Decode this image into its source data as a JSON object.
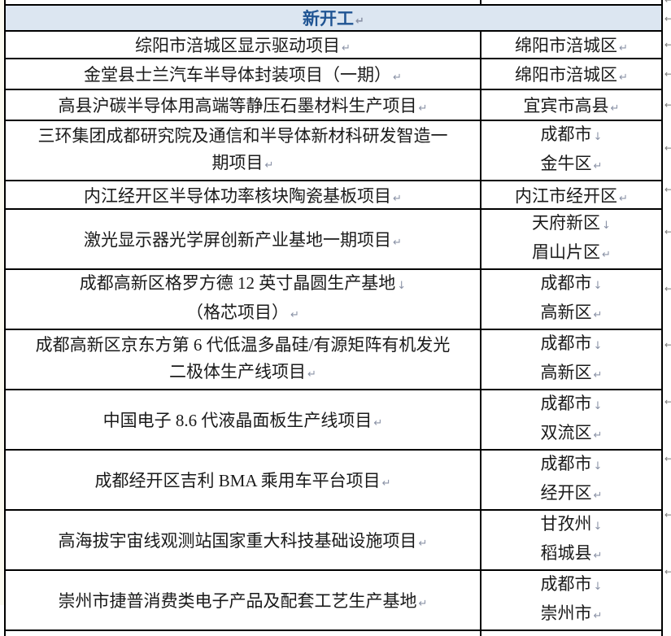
{
  "header": {
    "label": "新开工"
  },
  "marks": {
    "line_break": "↓",
    "cell_end": "↵",
    "row_end": "←"
  },
  "colors": {
    "header_bg": "#dce6f1",
    "header_text": "#1f5493",
    "border": "#000000",
    "body_text": "#1a1a1a",
    "mark_color": "#8a92a6"
  },
  "table": {
    "rows": [
      {
        "project_lines": [
          {
            "text": "综阳市涪城区显示驱动项目",
            "mark": "end"
          }
        ],
        "location_lines": [
          {
            "text": "绵阳市涪城区",
            "mark": "end"
          }
        ]
      },
      {
        "project_lines": [
          {
            "text": "金堂县士兰汽车半导体封装项目（一期）",
            "mark": "end"
          }
        ],
        "location_lines": [
          {
            "text": "绵阳市涪城区",
            "mark": "end"
          }
        ]
      },
      {
        "project_lines": [
          {
            "text": "高县沪碳半导体用高端等静压石墨材料生产项目",
            "mark": "end"
          }
        ],
        "location_lines": [
          {
            "text": "宜宾市高县",
            "mark": "end"
          }
        ]
      },
      {
        "project_lines": [
          {
            "text": "三环集团成都研究院及通信和半导体新材科研发智造一",
            "mark": "none"
          },
          {
            "text": "期项目",
            "mark": "end"
          }
        ],
        "location_lines": [
          {
            "text": "成都市",
            "mark": "br"
          },
          {
            "text": "金牛区",
            "mark": "end"
          }
        ]
      },
      {
        "project_lines": [
          {
            "text": "内江经开区半导体功率核块陶瓷基板项目",
            "mark": "end"
          }
        ],
        "location_lines": [
          {
            "text": "内江市经开区",
            "mark": "end"
          }
        ]
      },
      {
        "project_lines": [
          {
            "text": "激光显示器光学屏创新产业基地一期项目",
            "mark": "end"
          }
        ],
        "location_lines": [
          {
            "text": "天府新区",
            "mark": "br"
          },
          {
            "text": "眉山片区",
            "mark": "end"
          }
        ]
      },
      {
        "project_lines": [
          {
            "text": "成都高新区格罗方德 12 英寸晶圆生产基地",
            "mark": "br"
          },
          {
            "text": "（格芯项目）",
            "mark": "end"
          }
        ],
        "location_lines": [
          {
            "text": "成都市",
            "mark": "br"
          },
          {
            "text": "高新区",
            "mark": "end"
          }
        ]
      },
      {
        "project_lines": [
          {
            "text": "成都高新区京东方第 6 代低温多晶硅/有源矩阵有机发光",
            "mark": "none"
          },
          {
            "text": "二极体生产线项目",
            "mark": "end"
          }
        ],
        "location_lines": [
          {
            "text": "成都市",
            "mark": "br"
          },
          {
            "text": "高新区",
            "mark": "end"
          }
        ]
      },
      {
        "project_lines": [
          {
            "text": "中国电子 8.6 代液晶面板生产线项目",
            "mark": "end"
          }
        ],
        "location_lines": [
          {
            "text": "成都市",
            "mark": "br"
          },
          {
            "text": "双流区",
            "mark": "end"
          }
        ]
      },
      {
        "project_lines": [
          {
            "text": "成都经开区吉利 BMA 乘用车平台项目",
            "mark": "end"
          }
        ],
        "location_lines": [
          {
            "text": "成都市",
            "mark": "br"
          },
          {
            "text": "经开区",
            "mark": "end"
          }
        ]
      },
      {
        "project_lines": [
          {
            "text": "高海拔宇宙线观测站国家重大科技基础设施项目",
            "mark": "end"
          }
        ],
        "location_lines": [
          {
            "text": "甘孜州",
            "mark": "br"
          },
          {
            "text": "稻城县",
            "mark": "end"
          }
        ]
      },
      {
        "project_lines": [
          {
            "text": "崇州市捷普消费类电子产品及配套工艺生产基地",
            "mark": "end"
          }
        ],
        "location_lines": [
          {
            "text": "成都市",
            "mark": "br"
          },
          {
            "text": "崇州市",
            "mark": "end"
          }
        ]
      }
    ]
  }
}
